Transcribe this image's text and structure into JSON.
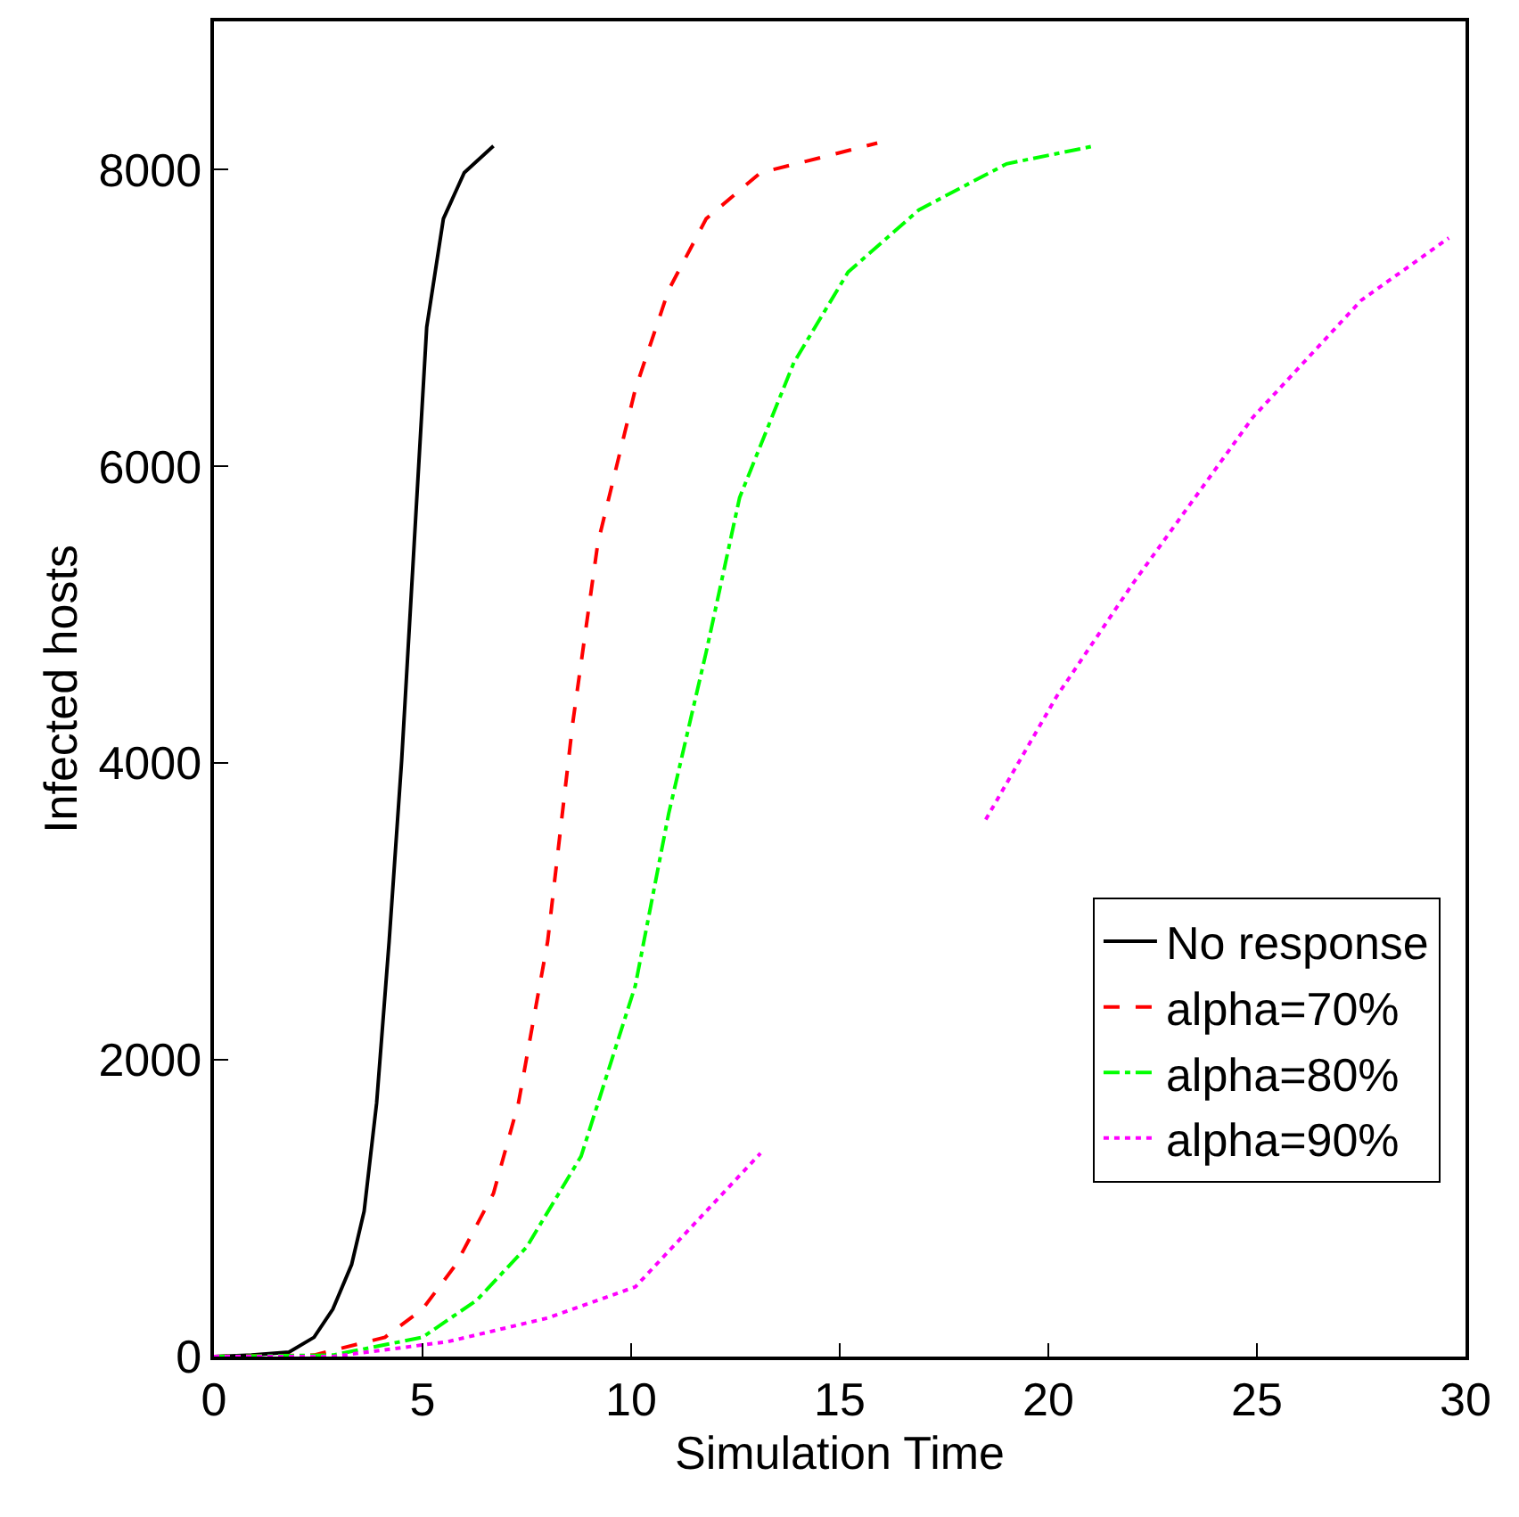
{
  "chart_data": {
    "type": "line",
    "xlabel": "Simulation Time",
    "ylabel": "Infected hosts",
    "xlim": [
      0,
      30
    ],
    "xticks": [
      0,
      5,
      10,
      15,
      20,
      25,
      30
    ],
    "ylim": [
      0,
      9000
    ],
    "yticks": [
      0,
      2000,
      4000,
      6000,
      8000
    ],
    "grid": false,
    "legend": "bottom right",
    "marker": "none",
    "series": [
      {
        "name": "No response",
        "color": "#000000",
        "line_style": "solid",
        "x": [
          0,
          0.9,
          1.8,
          2.4,
          2.85,
          3.3,
          3.6,
          3.9,
          4.2,
          4.5,
          4.8,
          5.1,
          5.5,
          6.0,
          6.7
        ],
        "values": [
          0,
          10,
          30,
          130,
          320,
          620,
          980,
          1710,
          2800,
          4020,
          5480,
          6940,
          7670,
          7980,
          8160
        ]
      },
      {
        "name": "alpha=70%",
        "color": "#ff0000",
        "line_style": "dashed",
        "x": [
          0,
          2.4,
          4.1,
          5,
          5.8,
          6.7,
          7.3,
          8.0,
          8.6,
          9.2,
          10.1,
          10.9,
          11.8,
          13.1,
          14.8,
          15.9
        ],
        "values": [
          0,
          10,
          130,
          320,
          620,
          1100,
          1710,
          2800,
          4270,
          5480,
          6520,
          7190,
          7670,
          7980,
          8100,
          8180
        ]
      },
      {
        "name": "alpha=80%",
        "color": "#00ff00",
        "line_style": "dashdot",
        "x": [
          0,
          2.85,
          5,
          6.3,
          7.5,
          8.8,
          10.1,
          10.9,
          11.8,
          12.6,
          13.9,
          15.2,
          16.9,
          19,
          21.1
        ],
        "values": [
          0,
          10,
          130,
          380,
          740,
          1350,
          2500,
          3660,
          4750,
          5790,
          6700,
          7310,
          7730,
          8040,
          8160
        ]
      },
      {
        "name": "alpha=90%",
        "color": "#ff00ff",
        "line_style": "dotted",
        "x": [
          0,
          2.85,
          5.6,
          8.0,
          10.1,
          13.1,
          15.8,
          18.5,
          20.2,
          22,
          24.9,
          27.5,
          29.6
        ],
        "values": [
          0,
          0,
          100,
          260,
          470,
          1370,
          null,
          3620,
          4450,
          5200,
          6330,
          7120,
          7540
        ]
      }
    ]
  }
}
